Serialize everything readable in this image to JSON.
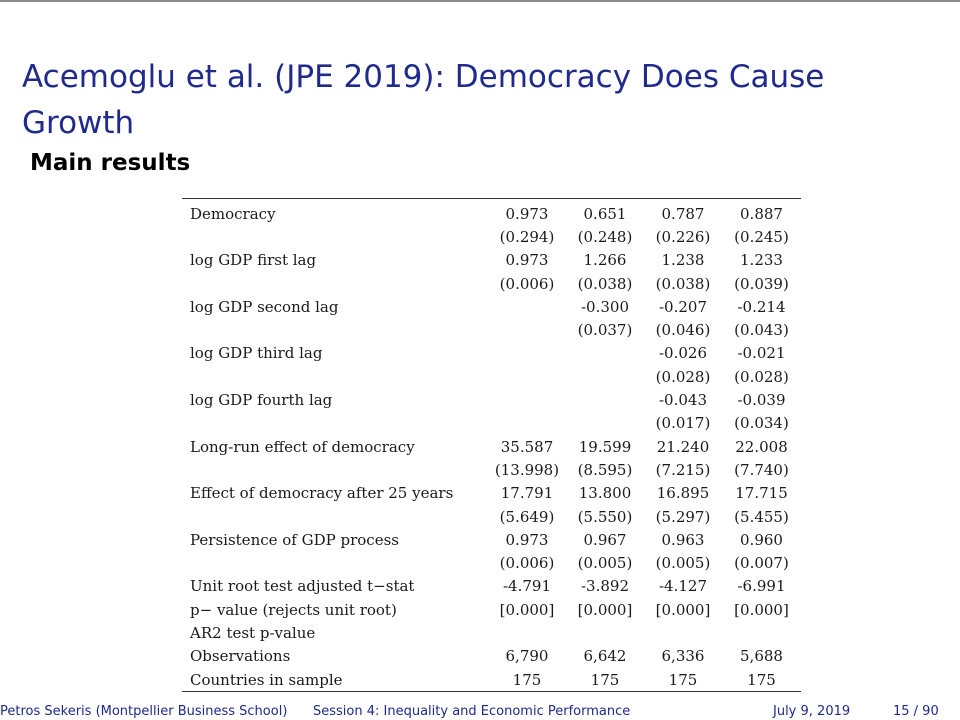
{
  "slide": {
    "title": "Acemoglu et al. (JPE 2019): Democracy Does Cause Growth",
    "subtitle": "Main results"
  },
  "table": {
    "rows": [
      {
        "label": "Democracy",
        "values": [
          "0.973",
          "0.651",
          "0.787",
          "0.887"
        ]
      },
      {
        "label": "",
        "values": [
          "(0.294)",
          "(0.248)",
          "(0.226)",
          "(0.245)"
        ]
      },
      {
        "label": "log GDP first lag",
        "values": [
          "0.973",
          "1.266",
          "1.238",
          "1.233"
        ]
      },
      {
        "label": "",
        "values": [
          "(0.006)",
          "(0.038)",
          "(0.038)",
          "(0.039)"
        ]
      },
      {
        "label": "log GDP second lag",
        "values": [
          "",
          "-0.300",
          "-0.207",
          "-0.214"
        ]
      },
      {
        "label": "",
        "values": [
          "",
          "(0.037)",
          "(0.046)",
          "(0.043)"
        ]
      },
      {
        "label": "log GDP third lag",
        "values": [
          "",
          "",
          "-0.026",
          "-0.021"
        ]
      },
      {
        "label": "",
        "values": [
          "",
          "",
          "(0.028)",
          "(0.028)"
        ]
      },
      {
        "label": "log GDP fourth lag",
        "values": [
          "",
          "",
          "-0.043",
          "-0.039"
        ]
      },
      {
        "label": "",
        "values": [
          "",
          "",
          "(0.017)",
          "(0.034)"
        ]
      },
      {
        "label": " Long-run effect of democracy",
        "values": [
          "35.587",
          "19.599",
          "21.240",
          "22.008"
        ]
      },
      {
        "label": "",
        "values": [
          "(13.998)",
          "(8.595)",
          "(7.215)",
          "(7.740)"
        ]
      },
      {
        "label": "Effect of democracy after 25 years",
        "values": [
          "17.791",
          "13.800",
          "16.895",
          "17.715"
        ]
      },
      {
        "label": "",
        "values": [
          "(5.649)",
          "(5.550)",
          "(5.297)",
          "(5.455)"
        ]
      },
      {
        "label": "Persistence of GDP process",
        "values": [
          "0.973",
          "0.967",
          "0.963",
          "0.960"
        ]
      },
      {
        "label": "",
        "values": [
          "(0.006)",
          "(0.005)",
          "(0.005)",
          "(0.007)"
        ]
      },
      {
        "label": "Unit root test adjusted t−stat",
        "values": [
          "-4.791",
          "-3.892",
          "-4.127",
          "-6.991"
        ]
      },
      {
        "label": "p− value (rejects unit root)",
        "values": [
          "[0.000]",
          "[0.000]",
          "[0.000]",
          "[0.000]"
        ]
      },
      {
        "label": "AR2 test p-value",
        "values": [
          "",
          "",
          "",
          ""
        ]
      },
      {
        "label": "Observations",
        "values": [
          "6,790",
          "6,642",
          "6,336",
          "5,688"
        ]
      },
      {
        "label": "Countries in sample",
        "values": [
          "175",
          "175",
          "175",
          "175"
        ]
      }
    ]
  },
  "footer": {
    "author": "Petros Sekeris (Montpellier Business School)",
    "session": "Session 4: Inequality and Economic Performance",
    "date": "July 9, 2019",
    "pages": "15 / 90"
  },
  "colors": {
    "title": "#1f2a8c",
    "text": "#000000",
    "rule": "#333333"
  }
}
